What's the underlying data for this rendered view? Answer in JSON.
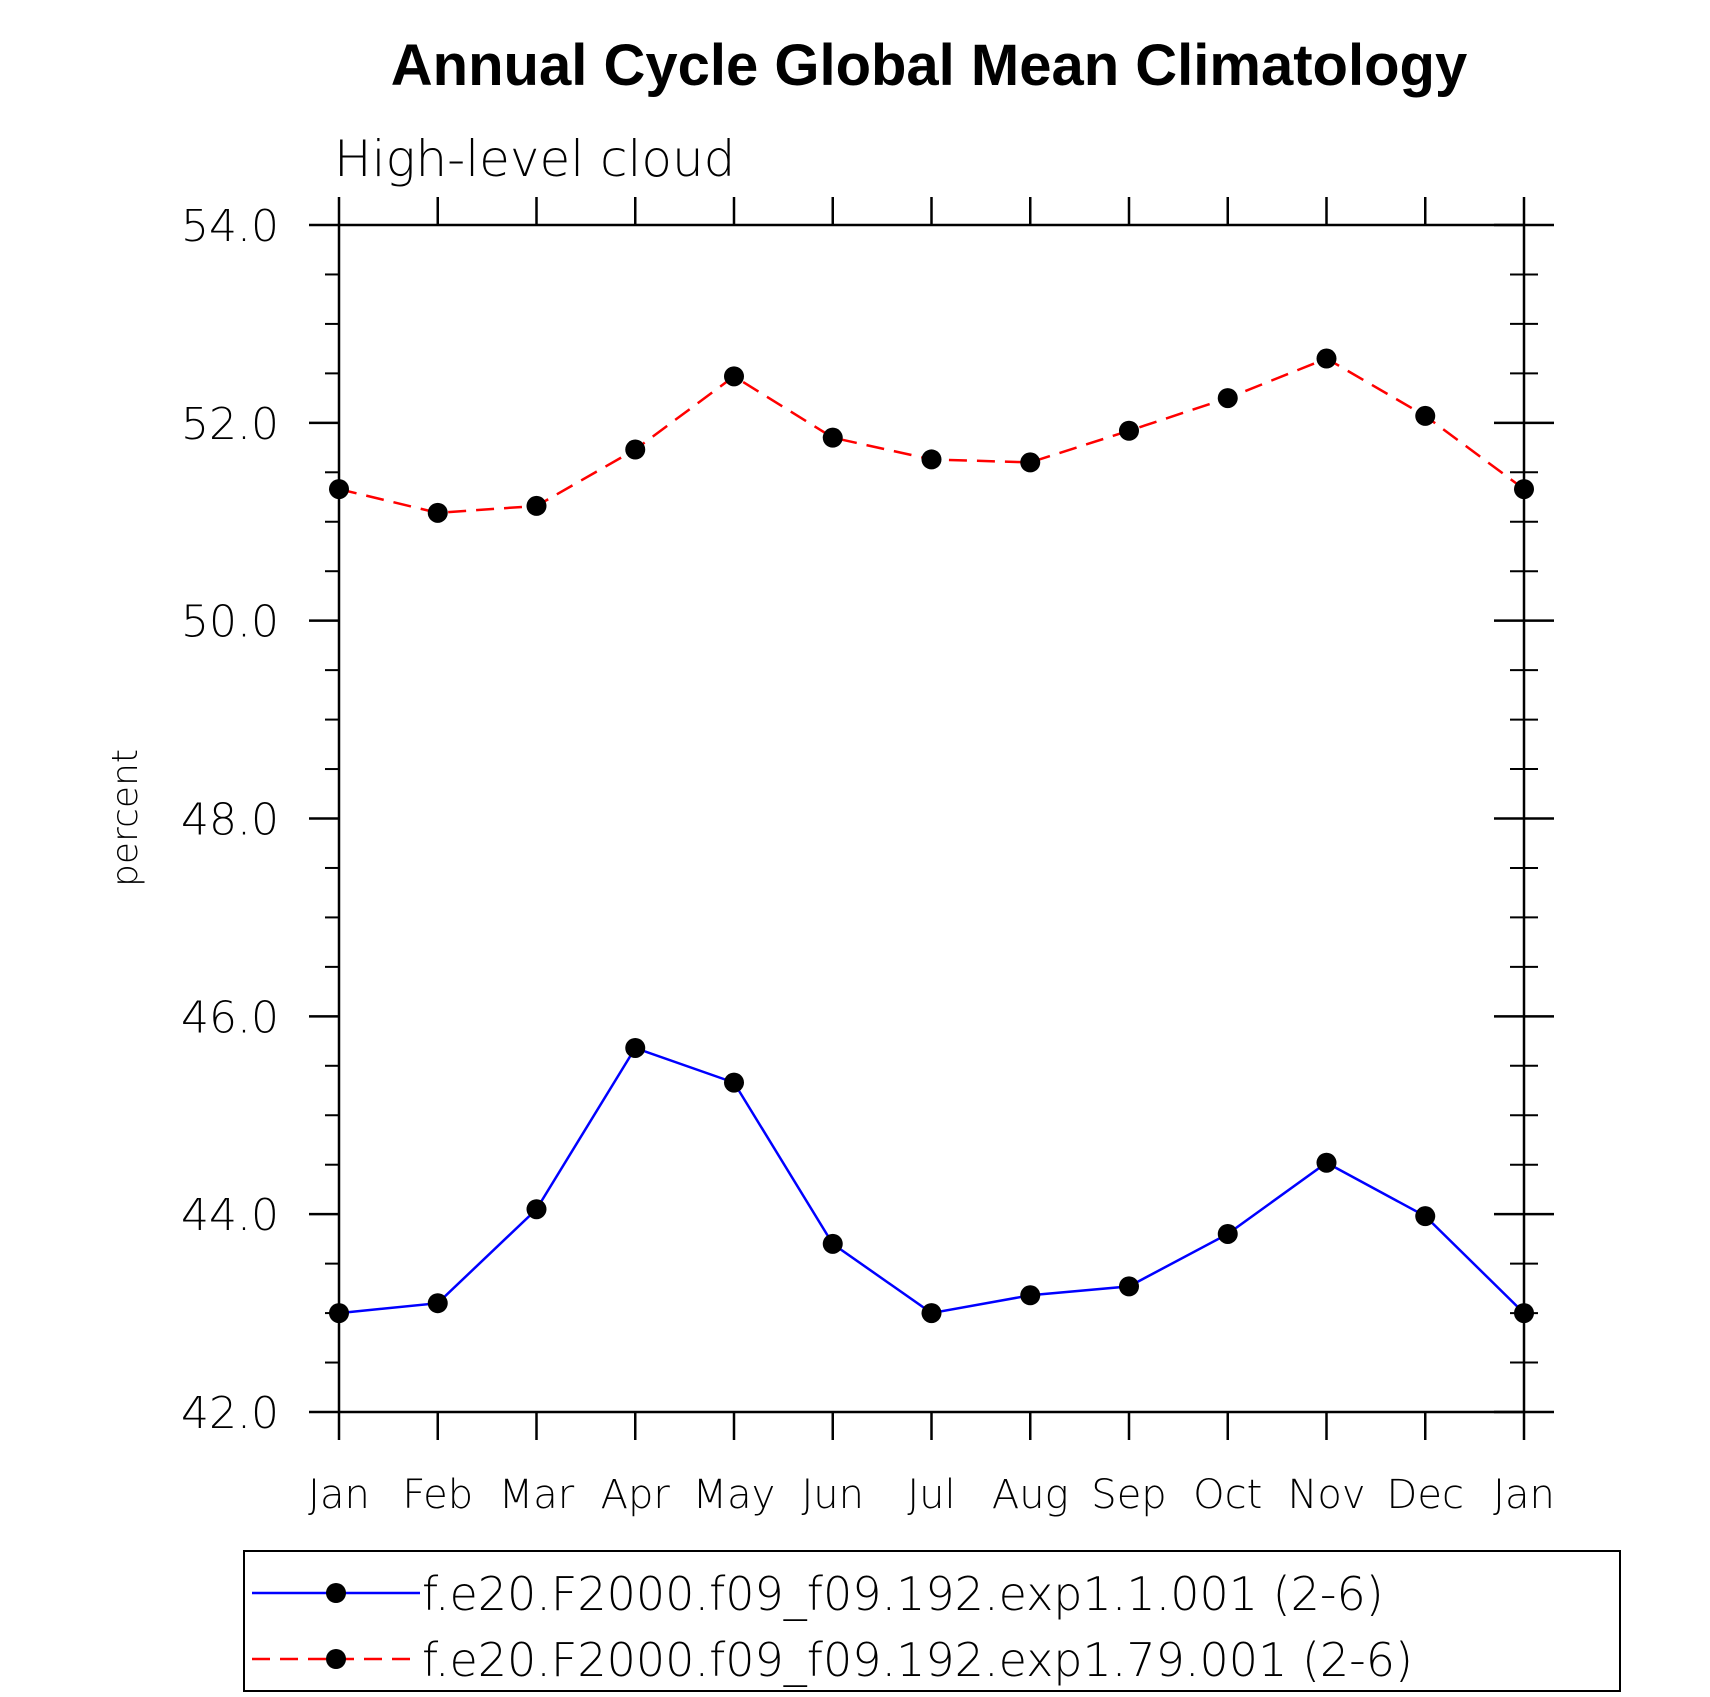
{
  "chart_data": {
    "type": "line",
    "title": "Annual Cycle Global Mean Climatology",
    "subtitle": "High-level cloud",
    "xlabel": "",
    "ylabel": "percent",
    "ylim": [
      42.0,
      54.0
    ],
    "yticks": [
      "42.0",
      "44.0",
      "46.0",
      "48.0",
      "50.0",
      "52.0",
      "54.0"
    ],
    "categories": [
      "Jan",
      "Feb",
      "Mar",
      "Apr",
      "May",
      "Jun",
      "Jul",
      "Aug",
      "Sep",
      "Oct",
      "Nov",
      "Dec",
      "Jan"
    ],
    "legend_position": "bottom",
    "series": [
      {
        "name": "f.e20.F2000.f09_f09.192.exp1.1.001 (2-6)",
        "color": "#0000ff",
        "dash": "solid",
        "values": [
          43.0,
          43.1,
          44.05,
          45.68,
          45.33,
          43.7,
          43.0,
          43.18,
          43.27,
          43.8,
          44.52,
          43.98,
          43.0
        ]
      },
      {
        "name": "f.e20.F2000.f09_f09.192.exp1.79.001 (2-6)",
        "color": "#ff0000",
        "dash": "dashed",
        "values": [
          51.33,
          51.09,
          51.16,
          51.73,
          52.47,
          51.85,
          51.63,
          51.6,
          51.92,
          52.25,
          52.65,
          52.07,
          51.33
        ]
      }
    ]
  }
}
